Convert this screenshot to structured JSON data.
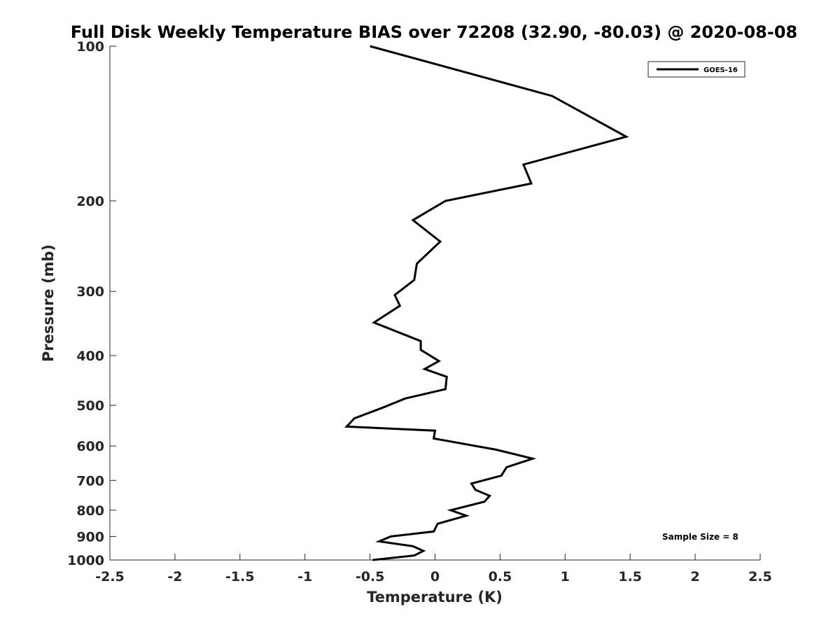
{
  "chart_data": {
    "type": "line",
    "title": "Full Disk Weekly Temperature BIAS over 72208 (32.90, -80.03) @ 2020-08-08",
    "xlabel": "Temperature (K)",
    "ylabel": "Pressure (mb)",
    "xlim": [
      -2.5,
      2.5
    ],
    "ylim": [
      100,
      1000
    ],
    "y_scale": "log",
    "y_reversed": true,
    "x_ticks": [
      -2.5,
      -2,
      -1.5,
      -1,
      -0.5,
      0,
      0.5,
      1,
      1.5,
      2,
      2.5
    ],
    "x_tick_labels": [
      "-2.5",
      "-2",
      "-1.5",
      "-1",
      "-0.5",
      "0",
      "0.5",
      "1",
      "1.5",
      "2",
      "2.5"
    ],
    "y_ticks": [
      100,
      200,
      300,
      400,
      500,
      600,
      700,
      800,
      900,
      1000
    ],
    "y_tick_labels": [
      "100",
      "200",
      "300",
      "400",
      "500",
      "600",
      "700",
      "800",
      "900",
      "1000"
    ],
    "grid": false,
    "legend_position": "top-right",
    "series": [
      {
        "name": "GOES-16",
        "color": "#000000",
        "x": [
          -0.5,
          0.9,
          1.47,
          0.68,
          0.74,
          0.08,
          -0.17,
          0.04,
          -0.14,
          -0.16,
          -0.31,
          -0.27,
          -0.47,
          -0.11,
          -0.11,
          0.03,
          -0.08,
          0.09,
          0.08,
          -0.23,
          -0.4,
          -0.62,
          -0.68,
          0.0,
          -0.01,
          0.47,
          0.75,
          0.55,
          0.51,
          0.28,
          0.31,
          0.42,
          0.38,
          0.12,
          0.24,
          0.02,
          0.01,
          -0.01,
          -0.34,
          -0.43,
          -0.17,
          -0.09,
          -0.16,
          -0.48
        ],
        "y": [
          100,
          125,
          150,
          170,
          185,
          200,
          218,
          240,
          265,
          285,
          305,
          320,
          345,
          375,
          390,
          410,
          425,
          440,
          465,
          485,
          505,
          530,
          550,
          560,
          580,
          610,
          635,
          660,
          685,
          710,
          730,
          750,
          770,
          800,
          820,
          850,
          860,
          880,
          900,
          920,
          940,
          960,
          980,
          1000
        ]
      }
    ],
    "annotations": [
      "Sample Size = 8"
    ]
  }
}
